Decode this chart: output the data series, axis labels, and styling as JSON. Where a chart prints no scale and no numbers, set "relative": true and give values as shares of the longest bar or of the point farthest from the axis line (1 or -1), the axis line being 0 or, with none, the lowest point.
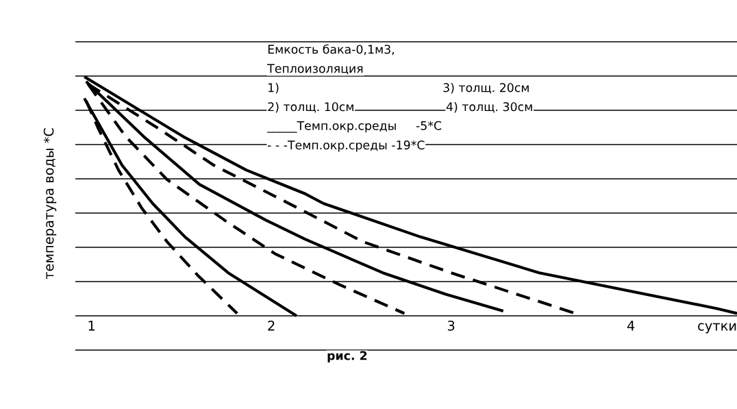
{
  "chart_data": {
    "type": "line",
    "relative": true,
    "ylabel": "температура воды *С",
    "xlabel": "сутки",
    "xlim": [
      0.91,
      4.59
    ],
    "xticks": [
      1,
      2,
      3,
      4
    ],
    "grid": "y",
    "tick_labels": "x",
    "marker": "none",
    "annotations": [
      "Емкость бака-0,1м3,",
      "Теплоизоляция",
      "1)",
      "3) толщ. 20см",
      "2) толщ. 10см",
      "4) толщ. 30см",
      "_____Темп.окр.среды     -5*С",
      "- - -Темп.окр.среды -19*С",
      "рис. 2"
    ],
    "series": [
      {
        "color": "#000000",
        "line_style": "solid",
        "x": [
          0.96,
          1.17,
          1.34,
          1.52,
          1.76,
          2.14
        ],
        "values": [
          0.91,
          0.63,
          0.47,
          0.33,
          0.18,
          0.0
        ]
      },
      {
        "color": "#000000",
        "line_style": "dashed",
        "x": [
          0.97,
          1.04,
          1.15,
          1.28,
          1.42,
          1.59,
          1.81
        ],
        "values": [
          0.9,
          0.78,
          0.61,
          0.45,
          0.31,
          0.17,
          0.01
        ]
      },
      {
        "color": "#000000",
        "line_style": "solid",
        "x": [
          0.97,
          1.29,
          1.6,
          1.97,
          2.19,
          2.62,
          2.97,
          3.29
        ],
        "values": [
          0.98,
          0.75,
          0.55,
          0.4,
          0.32,
          0.18,
          0.09,
          0.02
        ]
      },
      {
        "color": "#000000",
        "line_style": "dashed",
        "x": [
          0.98,
          1.19,
          1.42,
          1.74,
          2.02,
          2.38,
          2.74
        ],
        "values": [
          0.97,
          0.75,
          0.57,
          0.4,
          0.26,
          0.13,
          0.01
        ]
      },
      {
        "color": "#000000",
        "line_style": "dashed",
        "x": [
          0.98,
          1.38,
          1.68,
          2.02,
          2.51,
          3.0,
          3.57,
          3.69
        ],
        "values": [
          0.97,
          0.78,
          0.63,
          0.5,
          0.31,
          0.18,
          0.04,
          0.01
        ]
      },
      {
        "color": "#000000",
        "line_style": "solid",
        "x": [
          0.96,
          1.51,
          1.86,
          2.19,
          2.29,
          2.83,
          3.49,
          4.48,
          4.59
        ],
        "values": [
          1.0,
          0.75,
          0.61,
          0.51,
          0.47,
          0.33,
          0.18,
          0.03,
          0.01
        ]
      }
    ]
  }
}
